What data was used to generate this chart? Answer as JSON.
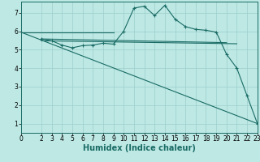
{
  "bg_color": "#bde8e4",
  "grid_color": "#9dcfcb",
  "line_color": "#1a6b65",
  "xlabel": "Humidex (Indice chaleur)",
  "xlabel_fontsize": 7,
  "tick_fontsize": 5.5,
  "xlim": [
    0,
    23
  ],
  "ylim": [
    0.5,
    7.6
  ],
  "yticks": [
    1,
    2,
    3,
    4,
    5,
    6,
    7
  ],
  "xticks": [
    0,
    2,
    3,
    4,
    5,
    6,
    7,
    8,
    9,
    10,
    11,
    12,
    13,
    14,
    15,
    16,
    17,
    18,
    19,
    20,
    21,
    22,
    23
  ],
  "line1_x": [
    2,
    3,
    4,
    5,
    6,
    7,
    8,
    9,
    10,
    11,
    12,
    13,
    14,
    15,
    16,
    17,
    18,
    19,
    20,
    21,
    22,
    23
  ],
  "line1_y": [
    5.58,
    5.48,
    5.25,
    5.1,
    5.22,
    5.25,
    5.35,
    5.3,
    6.0,
    7.25,
    7.35,
    6.85,
    7.4,
    6.65,
    6.25,
    6.1,
    6.05,
    5.95,
    4.75,
    4.0,
    2.5,
    1.0
  ],
  "line2_x": [
    0,
    9
  ],
  "line2_y": [
    5.95,
    5.95
  ],
  "line3_x": [
    2,
    20
  ],
  "line3_y": [
    5.58,
    5.38
  ],
  "line4_x": [
    2,
    21
  ],
  "line4_y": [
    5.48,
    5.32
  ],
  "line5_x": [
    0,
    23
  ],
  "line5_y": [
    5.95,
    1.0
  ]
}
